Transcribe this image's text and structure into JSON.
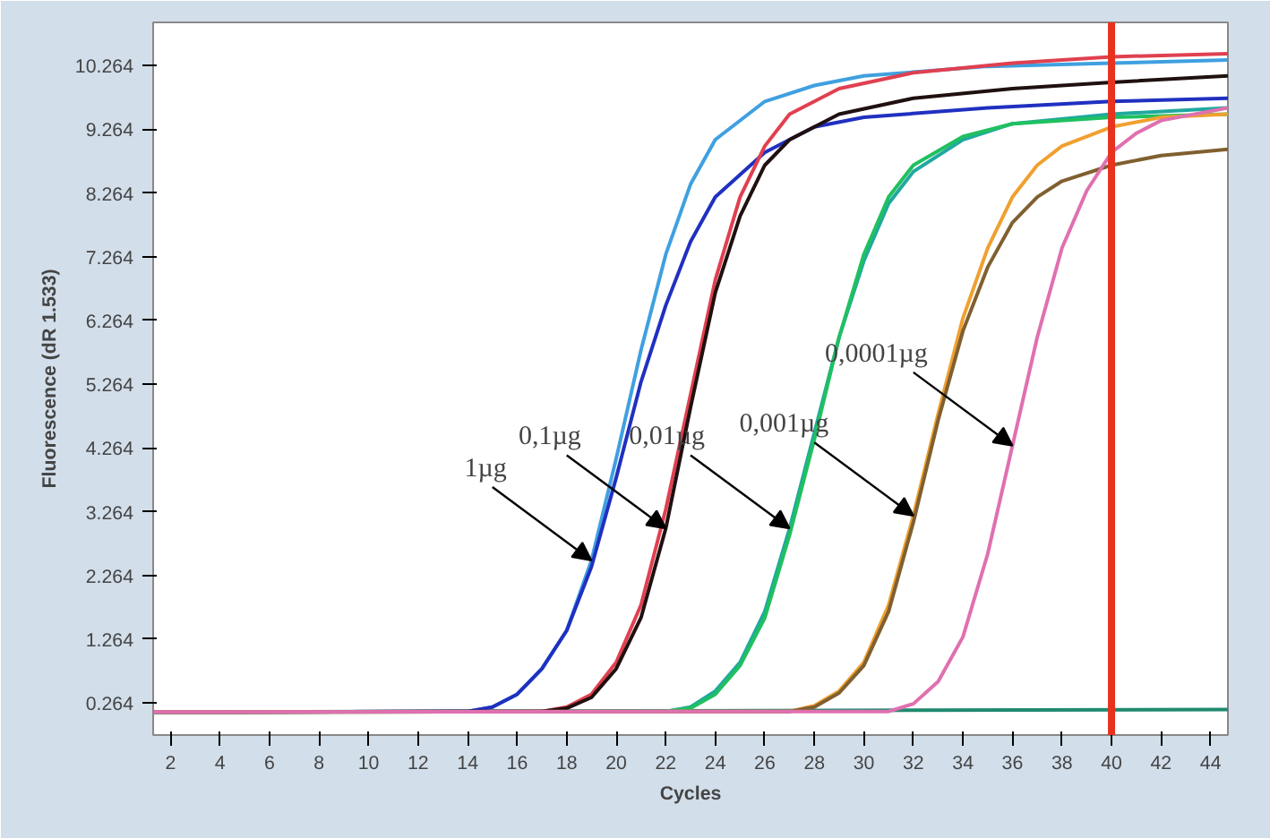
{
  "chart_data": {
    "type": "line",
    "xlabel": "Cycles",
    "ylabel": "Fluorescence (dR 1.533)",
    "xlim": [
      1.3,
      44.7
    ],
    "ylim": [
      -0.24,
      10.94
    ],
    "xticks": [
      2,
      4,
      6,
      8,
      10,
      12,
      14,
      16,
      18,
      20,
      22,
      24,
      26,
      28,
      30,
      32,
      34,
      36,
      38,
      40,
      42,
      44
    ],
    "yticks": [
      0.264,
      1.264,
      2.264,
      3.264,
      4.264,
      5.264,
      6.264,
      7.264,
      8.264,
      9.264,
      10.264
    ],
    "series": [
      {
        "color": "#208a70",
        "x": [
          1.3,
          44.7
        ],
        "values": [
          0.12,
          0.16
        ]
      },
      {
        "color": "#3fa0e0",
        "x": [
          1.3,
          14,
          15,
          16,
          17,
          18,
          19,
          20,
          21,
          22,
          23,
          24,
          26,
          28,
          30,
          35,
          40,
          44.7
        ],
        "values": [
          0.12,
          0.13,
          0.2,
          0.4,
          0.8,
          1.4,
          2.5,
          4.1,
          5.8,
          7.3,
          8.4,
          9.1,
          9.7,
          9.95,
          10.1,
          10.25,
          10.3,
          10.35
        ]
      },
      {
        "color": "#2030c0",
        "x": [
          1.3,
          14,
          15,
          16,
          17,
          18,
          19,
          20,
          21,
          22,
          23,
          24,
          26,
          28,
          30,
          35,
          40,
          44.7
        ],
        "values": [
          0.12,
          0.13,
          0.2,
          0.4,
          0.8,
          1.4,
          2.4,
          3.8,
          5.3,
          6.5,
          7.5,
          8.2,
          8.9,
          9.3,
          9.45,
          9.6,
          9.7,
          9.75
        ]
      },
      {
        "color": "#e04050",
        "x": [
          1.3,
          17,
          18,
          19,
          20,
          21,
          22,
          23,
          24,
          25,
          26,
          27,
          29,
          32,
          36,
          40,
          44.7
        ],
        "values": [
          0.12,
          0.13,
          0.2,
          0.4,
          0.9,
          1.8,
          3.3,
          5.1,
          6.9,
          8.2,
          9.0,
          9.5,
          9.9,
          10.15,
          10.3,
          10.4,
          10.45
        ]
      },
      {
        "color": "#201010",
        "x": [
          1.3,
          17,
          18,
          19,
          20,
          21,
          22,
          23,
          24,
          25,
          26,
          27,
          29,
          32,
          36,
          40,
          44.7
        ],
        "values": [
          0.12,
          0.13,
          0.18,
          0.35,
          0.8,
          1.6,
          3.0,
          4.9,
          6.7,
          7.9,
          8.7,
          9.1,
          9.5,
          9.75,
          9.9,
          10.0,
          10.1
        ]
      },
      {
        "color": "#20a8a0",
        "x": [
          1.3,
          22,
          23,
          24,
          25,
          26,
          27,
          28,
          29,
          30,
          31,
          32,
          34,
          36,
          40,
          44.7
        ],
        "values": [
          0.12,
          0.13,
          0.2,
          0.45,
          0.9,
          1.7,
          3.0,
          4.5,
          6.0,
          7.2,
          8.1,
          8.6,
          9.1,
          9.35,
          9.5,
          9.6
        ]
      },
      {
        "color": "#20c060",
        "x": [
          1.3,
          22,
          23,
          24,
          25,
          26,
          27,
          28,
          29,
          30,
          31,
          32,
          34,
          36,
          40,
          44.7
        ],
        "values": [
          0.12,
          0.13,
          0.18,
          0.4,
          0.85,
          1.6,
          2.9,
          4.4,
          6.0,
          7.3,
          8.2,
          8.7,
          9.15,
          9.35,
          9.45,
          9.5
        ]
      },
      {
        "color": "#f0a030",
        "x": [
          1.3,
          27,
          28,
          29,
          30,
          31,
          32,
          33,
          34,
          35,
          36,
          37,
          38,
          40,
          42,
          44.7
        ],
        "values": [
          0.12,
          0.13,
          0.22,
          0.45,
          0.9,
          1.8,
          3.2,
          4.8,
          6.3,
          7.4,
          8.2,
          8.7,
          9.0,
          9.3,
          9.45,
          9.5
        ]
      },
      {
        "color": "#806030",
        "x": [
          1.3,
          27,
          28,
          29,
          30,
          31,
          32,
          33,
          34,
          35,
          36,
          37,
          38,
          40,
          42,
          44.7
        ],
        "values": [
          0.12,
          0.13,
          0.2,
          0.42,
          0.85,
          1.7,
          3.1,
          4.7,
          6.1,
          7.1,
          7.8,
          8.2,
          8.45,
          8.7,
          8.85,
          8.95
        ]
      },
      {
        "color": "#e070b0",
        "x": [
          1.3,
          31,
          32,
          33,
          34,
          35,
          36,
          37,
          38,
          39,
          40,
          41,
          42,
          44.7
        ],
        "values": [
          0.12,
          0.13,
          0.25,
          0.6,
          1.3,
          2.6,
          4.3,
          6.0,
          7.4,
          8.3,
          8.9,
          9.2,
          9.4,
          9.6
        ]
      }
    ],
    "annotations": [
      {
        "text": "1µg",
        "x": 19,
        "y": 2.5
      },
      {
        "text": "0,1µg",
        "x": 22,
        "y": 3.0
      },
      {
        "text": "0,01µg",
        "x": 27,
        "y": 3.0
      },
      {
        "text": "0,001µg",
        "x": 32,
        "y": 3.2
      },
      {
        "text": "0,0001µg",
        "x": 36,
        "y": 4.3
      }
    ],
    "ref_lines": [
      {
        "axis": "x",
        "value": 40,
        "color": "#e8321e"
      }
    ]
  }
}
